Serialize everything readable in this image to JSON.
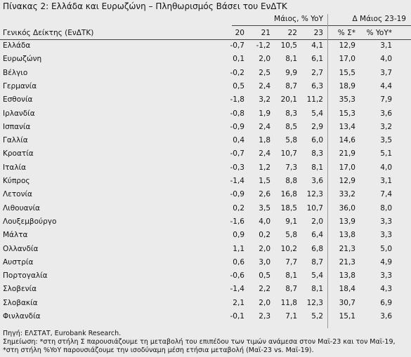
{
  "title": "Πίνακας 2: Ελλάδα και Ευρωζώνη – Πληθωρισμός Βάσει του ΕνΔΤΚ",
  "table": {
    "group_headers": [
      "Μάιος, % YoY",
      "Δ Μάιος 23-19"
    ],
    "headers": [
      "Γενικός Δείκτης (ΕνΔΤΚ)",
      "20",
      "21",
      "22",
      "23",
      "% Σ*",
      "% YoY*"
    ],
    "rows": [
      [
        "Ελλάδα",
        "-0,7",
        "-1,2",
        "10,5",
        "4,1",
        "12,9",
        "3,1"
      ],
      [
        "Ευρωζώνη",
        "0,1",
        "2,0",
        "8,1",
        "6,1",
        "17,0",
        "4,0"
      ],
      [
        "Βέλγιο",
        "-0,2",
        "2,5",
        "9,9",
        "2,7",
        "15,5",
        "3,7"
      ],
      [
        "Γερμανία",
        "0,5",
        "2,4",
        "8,7",
        "6,3",
        "18,9",
        "4,4"
      ],
      [
        "Εσθονία",
        "-1,8",
        "3,2",
        "20,1",
        "11,2",
        "35,3",
        "7,9"
      ],
      [
        "Ιρλανδία",
        "-0,8",
        "1,9",
        "8,3",
        "5,4",
        "15,3",
        "3,6"
      ],
      [
        "Ισπανία",
        "-0,9",
        "2,4",
        "8,5",
        "2,9",
        "13,4",
        "3,2"
      ],
      [
        "Γαλλία",
        "0,4",
        "1,8",
        "5,8",
        "6,0",
        "14,6",
        "3,5"
      ],
      [
        "Κροατία",
        "-0,7",
        "2,4",
        "10,7",
        "8,3",
        "21,9",
        "5,1"
      ],
      [
        "Ιταλία",
        "-0,3",
        "1,2",
        "7,3",
        "8,1",
        "17,0",
        "4,0"
      ],
      [
        "Κύπρος",
        "-1,4",
        "1,5",
        "8,8",
        "3,6",
        "12,9",
        "3,1"
      ],
      [
        "Λετονία",
        "-0,9",
        "2,6",
        "16,8",
        "12,3",
        "33,2",
        "7,4"
      ],
      [
        "Λιθουανία",
        "0,2",
        "3,5",
        "18,5",
        "10,7",
        "36,0",
        "8,0"
      ],
      [
        "Λουξεμβούργο",
        "-1,6",
        "4,0",
        "9,1",
        "2,0",
        "13,9",
        "3,3"
      ],
      [
        "Μάλτα",
        "0,9",
        "0,2",
        "5,8",
        "6,4",
        "13,8",
        "3,3"
      ],
      [
        "Ολλανδία",
        "1,1",
        "2,0",
        "10,2",
        "6,8",
        "21,3",
        "5,0"
      ],
      [
        "Αυστρία",
        "0,6",
        "3,0",
        "7,7",
        "8,7",
        "21,3",
        "4,9"
      ],
      [
        "Πορτογαλία",
        "-0,6",
        "0,5",
        "8,1",
        "5,4",
        "13,8",
        "3,3"
      ],
      [
        "Σλοβενία",
        "-1,4",
        "2,2",
        "8,7",
        "8,1",
        "18,4",
        "4,3"
      ],
      [
        "Σλοβακία",
        "2,1",
        "2,0",
        "11,8",
        "12,3",
        "30,7",
        "6,9"
      ],
      [
        "Φινλανδία",
        "-0,1",
        "2,3",
        "7,1",
        "5,2",
        "15,1",
        "3,6"
      ]
    ]
  },
  "footer": {
    "source": "Πηγή: ΕΛΣΤΑΤ, Eurobank Research.",
    "note": "Σημείωση: *στη στήλη Σ παρουσιάζουμε τη μεταβολή του επιπέδου των τιμών ανάμεσα στον Μαϊ-23 και τον Μαϊ-19, *στη στήλη %YoY παρουσιάζουμε την ισοδύναμη μέση ετήσια μεταβολή (Μαϊ-23 vs. Μαϊ-19)."
  }
}
